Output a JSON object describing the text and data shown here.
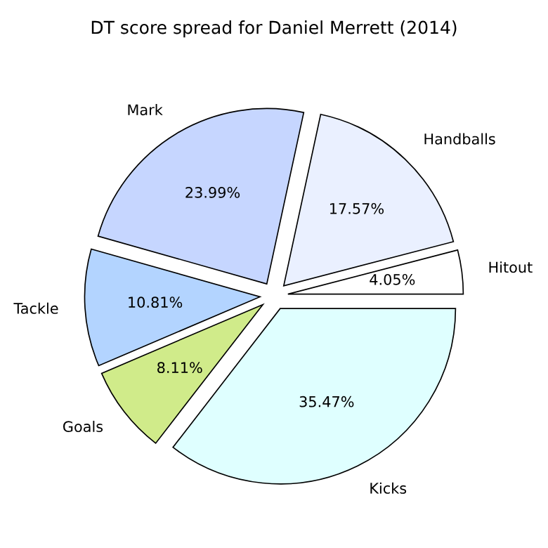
{
  "chart_data": {
    "type": "pie",
    "title": "DT score spread for Daniel Merrett (2014)",
    "categories": [
      "Hitout",
      "Handballs",
      "Mark",
      "Tackle",
      "Goals",
      "Kicks"
    ],
    "values": [
      4.05,
      17.57,
      23.99,
      10.81,
      8.11,
      35.47
    ],
    "colors": [
      "#ffffff",
      "#eaf0ff",
      "#c6d6ff",
      "#b3d4ff",
      "#d0eb8a",
      "#dfffff"
    ],
    "value_labels": [
      "4.05%",
      "17.57%",
      "23.99%",
      "10.81%",
      "8.11%",
      "35.47%"
    ],
    "legend": false
  }
}
